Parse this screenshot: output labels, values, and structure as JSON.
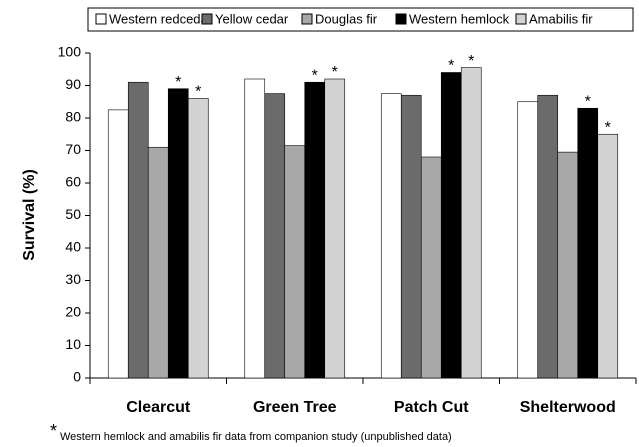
{
  "chart_data": {
    "type": "bar",
    "y_label": "Survival (%)",
    "categories": [
      "Clearcut",
      "Green Tree",
      "Patch Cut",
      "Shelterwood"
    ],
    "series": [
      {
        "name": "Western redcedar",
        "color": "#ffffff",
        "values": [
          82.5,
          92,
          87.5,
          85
        ]
      },
      {
        "name": "Yellow cedar",
        "color": "#6b6b6b",
        "values": [
          91,
          87.5,
          87,
          87
        ]
      },
      {
        "name": "Douglas fir",
        "color": "#a8a8a8",
        "values": [
          71,
          71.5,
          68,
          69.5
        ]
      },
      {
        "name": "Western hemlock",
        "color": "#000000",
        "values": [
          89,
          91,
          94,
          83
        ],
        "annotation": "*"
      },
      {
        "name": "Amabilis fir",
        "color": "#d3d3d3",
        "values": [
          86,
          92,
          95.5,
          75
        ],
        "annotation": "*"
      }
    ],
    "ylim": [
      0,
      100
    ],
    "yticks": [
      0,
      10,
      20,
      30,
      40,
      50,
      60,
      70,
      80,
      90,
      100
    ],
    "legend": "top",
    "footnote": {
      "marker": "*",
      "text": "Western hemlock and amabilis fir data from companion study (unpublished data)"
    }
  }
}
